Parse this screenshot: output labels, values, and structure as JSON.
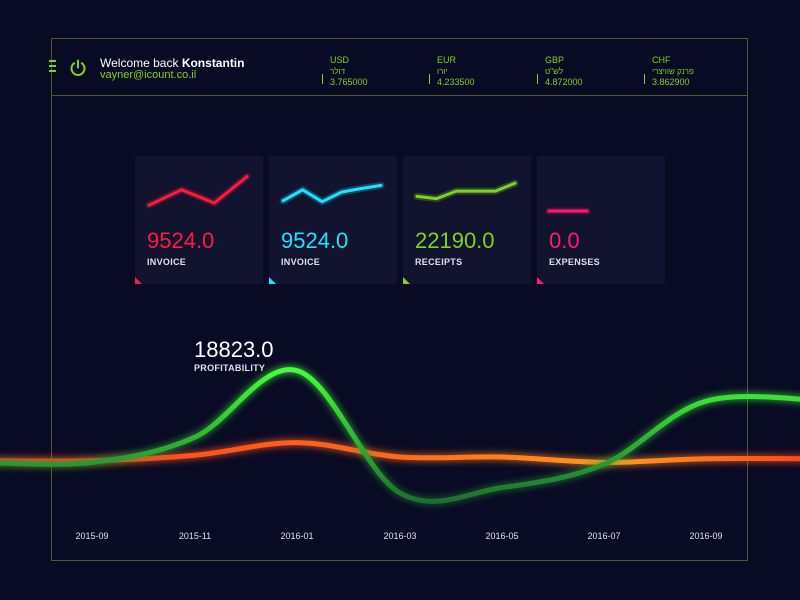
{
  "header": {
    "welcome_text": "Welcome back ",
    "user_name": "Konstantin",
    "email": "vayner@icount.co.il",
    "currencies": [
      {
        "code": "USD",
        "local": "דולר",
        "rate": "3.765000"
      },
      {
        "code": "EUR",
        "local": "יורו",
        "rate": "4.233500"
      },
      {
        "code": "GBP",
        "local": "לש\"ט",
        "rate": "4.872000"
      },
      {
        "code": "CHF",
        "local": "פרנק שוויצרי",
        "rate": "3.862900"
      }
    ]
  },
  "cards": [
    {
      "value": "9524.0",
      "label": "INVOICE",
      "color": "#ff1a3d",
      "sparkline": [
        20,
        55,
        25,
        85
      ]
    },
    {
      "value": "9524.0",
      "label": "INVOICE",
      "color": "#1ee3ff",
      "sparkline": [
        30,
        55,
        28,
        50,
        58,
        65
      ]
    },
    {
      "value": "22190.0",
      "label": "RECEIPTS",
      "color": "#7ed321",
      "sparkline": [
        40,
        35,
        52,
        52,
        52,
        70
      ]
    },
    {
      "value": "0.0",
      "label": "EXPENSES",
      "color": "#ff1a6a",
      "sparkline": [
        0,
        0
      ]
    }
  ],
  "profitability": {
    "value": "18823.0",
    "label": "PROFITABILITY"
  },
  "chart_data": {
    "type": "line",
    "x": [
      "2015-09",
      "2015-11",
      "2016-01",
      "2016-03",
      "2016-05",
      "2016-07",
      "2016-09"
    ],
    "series": [
      {
        "color": "#35e33d",
        "values": [
          0.32,
          0.46,
          0.83,
          0.15,
          0.18,
          0.31,
          0.66
        ]
      },
      {
        "color": "#ff4a1a",
        "values": [
          0.33,
          0.36,
          0.43,
          0.35,
          0.35,
          0.32,
          0.34
        ]
      }
    ],
    "grid": false
  }
}
